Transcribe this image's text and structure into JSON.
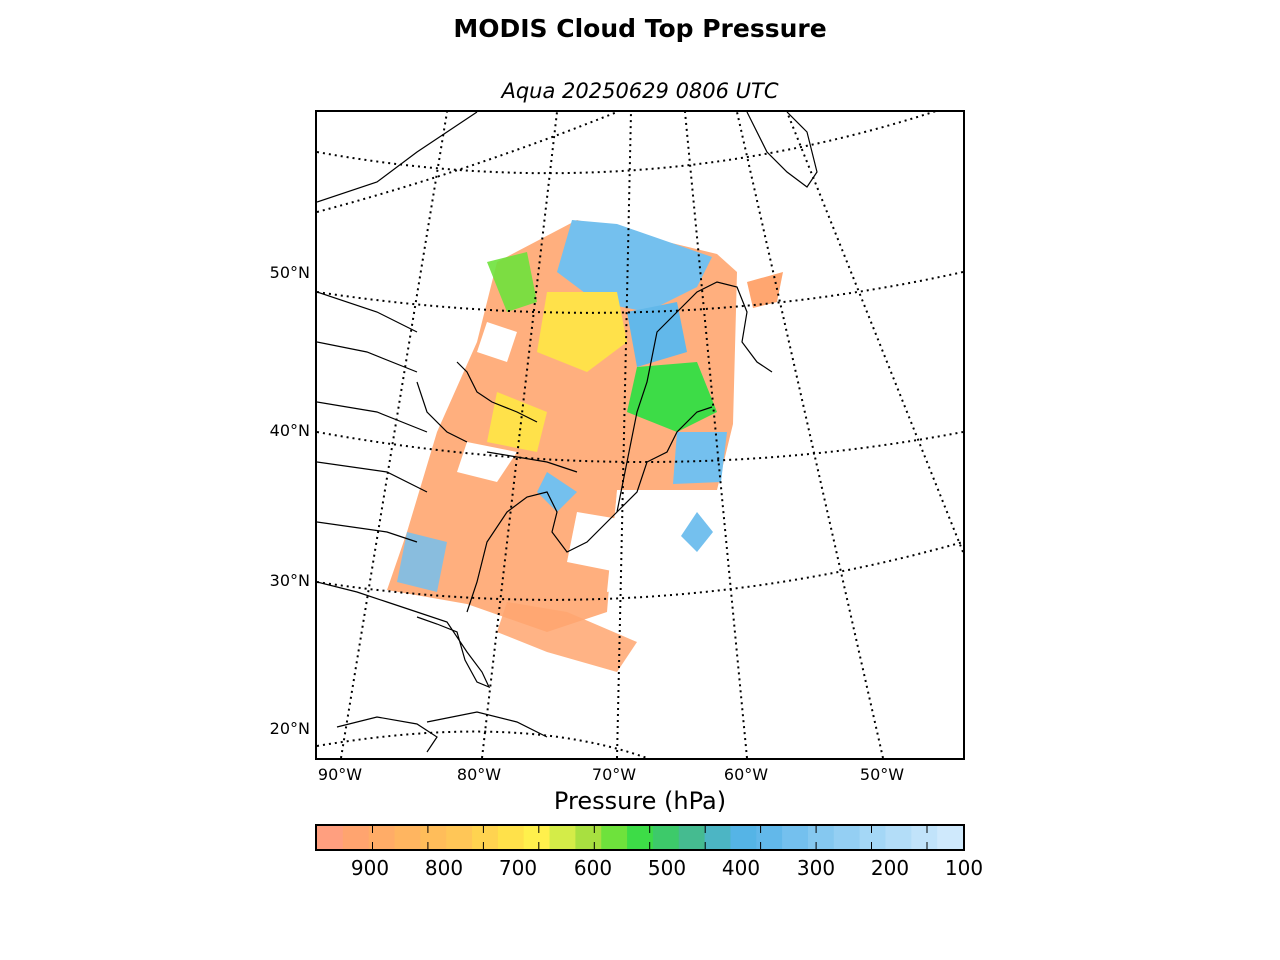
{
  "title": "MODIS Cloud Top Pressure",
  "subtitle": "Aqua 20250629 0806 UTC",
  "map": {
    "lat_labels": [
      "50°N",
      "40°N",
      "30°N",
      "20°N"
    ],
    "lon_labels": [
      "90°W",
      "80°W",
      "70°W",
      "60°W",
      "50°W"
    ]
  },
  "colorbar": {
    "title": "Pressure (hPa)",
    "tick_labels": [
      "900",
      "800",
      "700",
      "600",
      "500",
      "400",
      "300",
      "200",
      "100"
    ],
    "colors": [
      "#ff9f7f",
      "#ffa46f",
      "#ffac67",
      "#ffb560",
      "#ffbd5a",
      "#ffc657",
      "#ffd350",
      "#ffe14a",
      "#fff04c",
      "#d4ec48",
      "#a8e040",
      "#6ee23c",
      "#3ddc47",
      "#3dca6a",
      "#45bb90",
      "#4cb5c4",
      "#55b4e6",
      "#62b8ea",
      "#74c0ee",
      "#85c8f0",
      "#94cff3",
      "#a4d7f6",
      "#b3ddf8",
      "#c1e3fa",
      "#cfe9fc"
    ]
  },
  "legend_colors": {
    "low_cloud": "#ffa670",
    "mid_cloud": "#ffe14a",
    "mid_high": "#3ddc47",
    "high_cloud": "#74c0ee",
    "background": "#ffffff",
    "coastline": "#000000"
  }
}
